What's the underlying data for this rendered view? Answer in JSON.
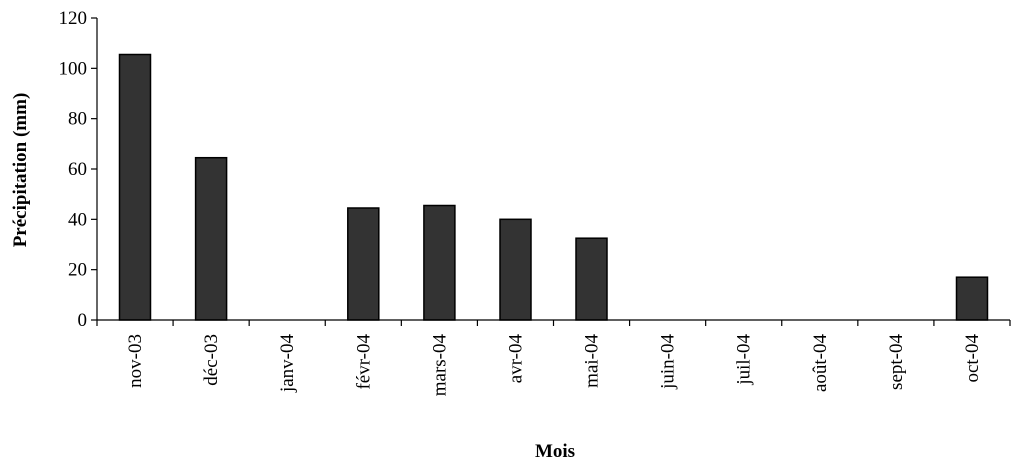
{
  "chart_data": {
    "type": "bar",
    "title": "",
    "xlabel": "Mois",
    "ylabel": "Précipitation (mm)",
    "categories": [
      "nov-03",
      "déc-03",
      "janv-04",
      "févr-04",
      "mars-04",
      "avr-04",
      "mai-04",
      "juin-04",
      "juil-04",
      "août-04",
      "sept-04",
      "oct-04"
    ],
    "values": [
      105.5,
      64.5,
      0,
      44.5,
      45.5,
      40,
      32.5,
      0,
      0,
      0,
      0,
      17
    ],
    "ylim": [
      0,
      120
    ],
    "yticks": [
      "0",
      "20",
      "40",
      "60",
      "80",
      "100",
      "120"
    ],
    "grid": false,
    "bar_color": "#333333"
  }
}
